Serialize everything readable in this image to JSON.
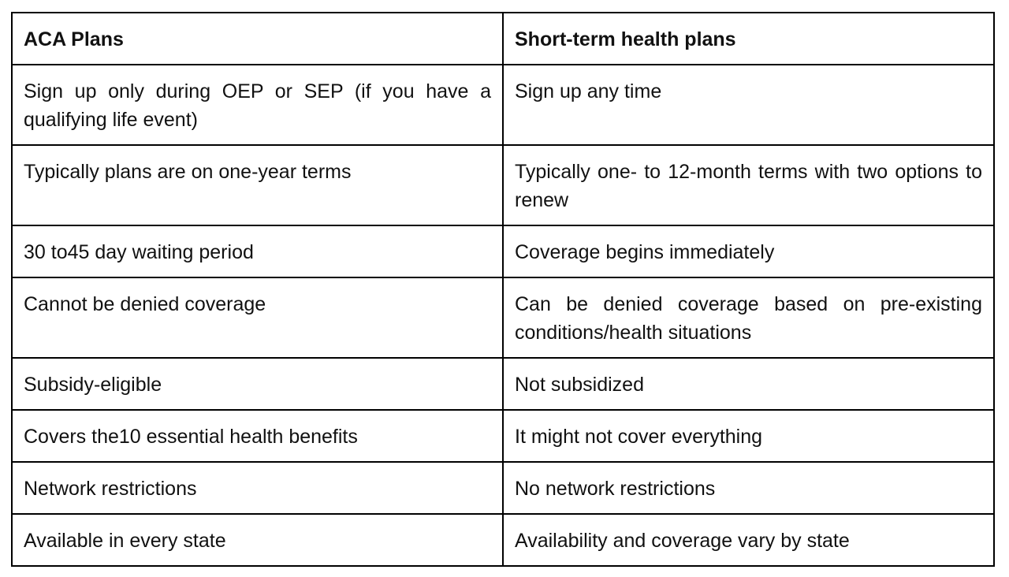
{
  "table": {
    "header": [
      "ACA Plans",
      "Short-term health plans"
    ],
    "rows": [
      [
        "Sign up only during OEP or SEP (if you have a qualifying life event)",
        "Sign up any time"
      ],
      [
        "Typically plans are on one-year terms",
        "Typically one- to 12-month terms with two options to renew"
      ],
      [
        "30 to45 day waiting period",
        "Coverage begins immediately"
      ],
      [
        "Cannot be denied coverage",
        "Can be denied coverage based on pre-existing conditions/health situations"
      ],
      [
        "Subsidy-eligible",
        "Not subsidized"
      ],
      [
        "Covers the10 essential health benefits",
        "It might not cover everything"
      ],
      [
        "Network restrictions",
        "No network restrictions"
      ],
      [
        "Available in every state",
        "Availability and coverage vary by state"
      ]
    ]
  }
}
